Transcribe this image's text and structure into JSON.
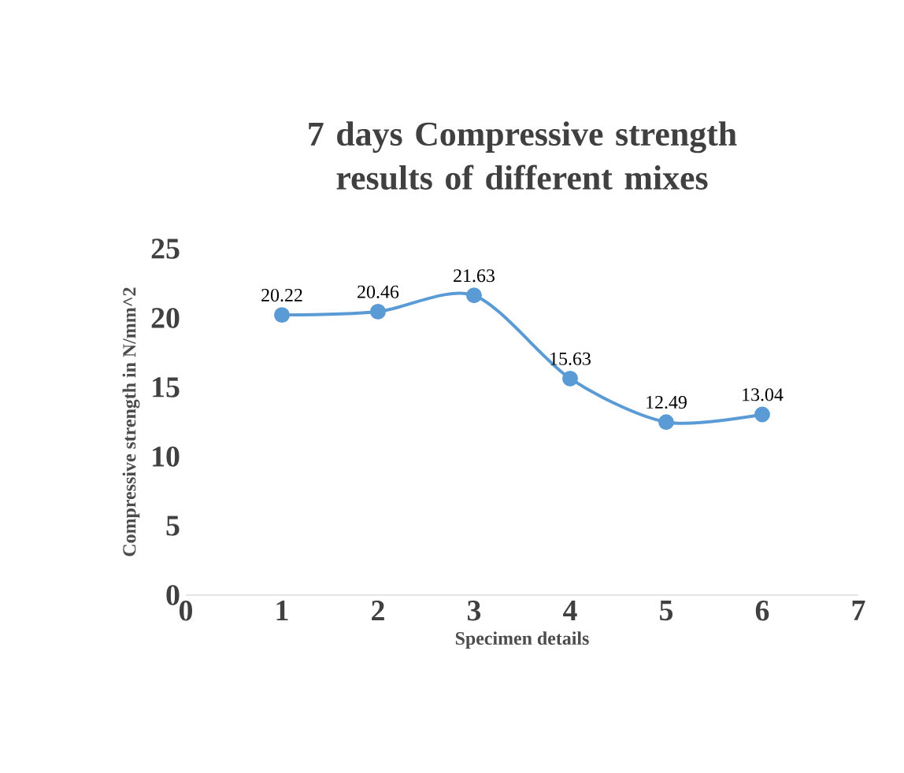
{
  "chart_data": {
    "type": "line",
    "title": "7 days Compressive strength results of different mixes",
    "xlabel": "Specimen details",
    "ylabel": "Compressive strength in N/mm^2",
    "x": [
      1,
      2,
      3,
      4,
      5,
      6
    ],
    "values": [
      20.22,
      20.46,
      21.63,
      15.63,
      12.49,
      13.04
    ],
    "color": "#5b9bd5",
    "marker": "circle",
    "line_style": "solid",
    "data_labels": true,
    "xlim": [
      0,
      7
    ],
    "xticks": [
      0,
      1,
      2,
      3,
      4,
      5,
      6,
      7
    ],
    "ylim": [
      0,
      25
    ],
    "yticks": [
      0,
      5,
      10,
      15,
      20,
      25
    ]
  }
}
